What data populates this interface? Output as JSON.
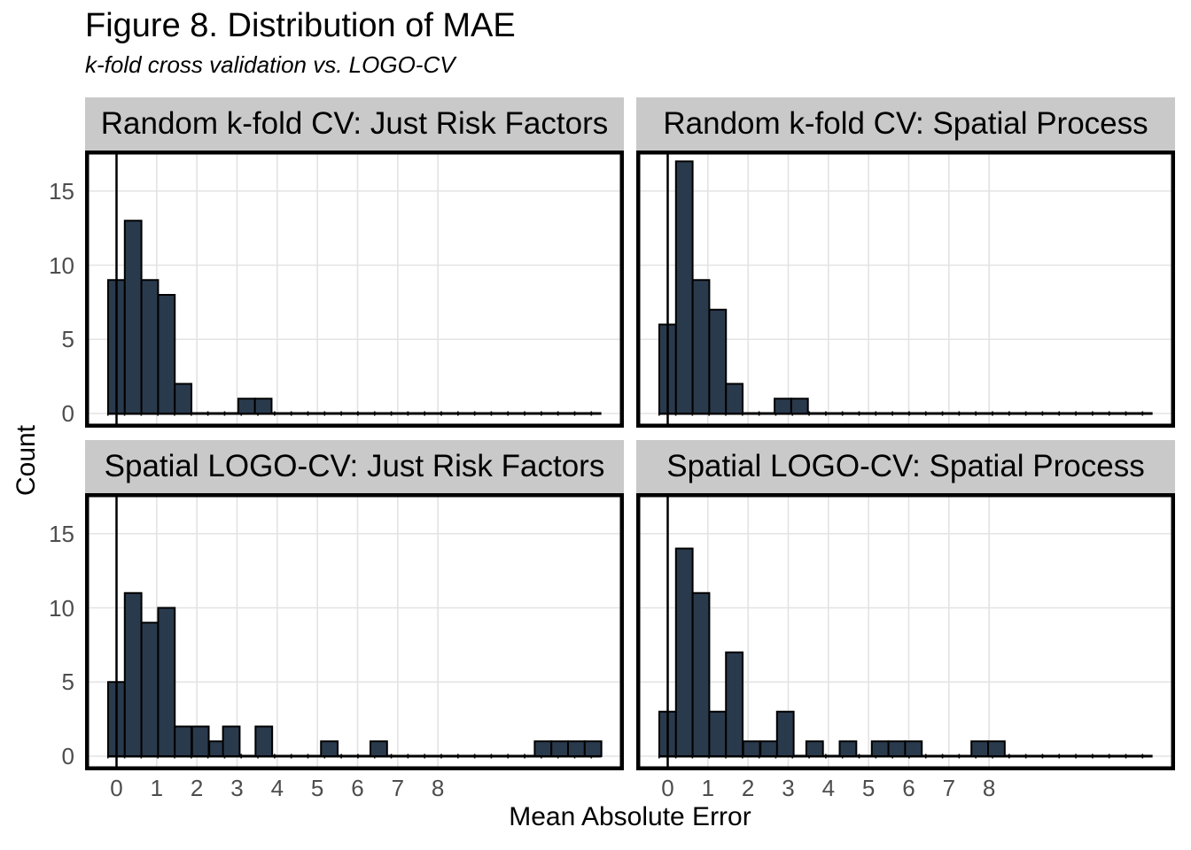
{
  "title": "Figure 8. Distribution of MAE",
  "subtitle": "k-fold cross validation vs. LOGO-CV",
  "axis_titles": {
    "x": "Mean Absolute Error",
    "y": "Count"
  },
  "axes": {
    "x_ticks": [
      0,
      1,
      2,
      3,
      4,
      5,
      6,
      7,
      8
    ],
    "y_ticks": [
      0,
      5,
      10,
      15
    ],
    "x_domain": [
      -0.78,
      12.63
    ],
    "y_domain": [
      -1.0,
      17.7
    ]
  },
  "colors": {
    "bar_fill": "#2a3a4d",
    "bar_stroke": "#000000",
    "strip_bg": "#c9c9c9",
    "strip_text": "#000000",
    "grid": "#e3e3e3",
    "axis_text": "#4d4d4d",
    "panel_border": "#000000",
    "zero_vline": "#000000",
    "baseline": "#000000",
    "background": "#ffffff"
  },
  "chart_data": {
    "type": "bar",
    "subtype": "faceted-histogram",
    "title": "Figure 8. Distribution of MAE",
    "subtitle": "k-fold cross validation vs. LOGO-CV",
    "xlabel": "Mean Absolute Error",
    "ylabel": "Count",
    "bin_width": 0.415,
    "baseline_extent": {
      "x_start": -0.215,
      "x_end": 12.07
    },
    "vline_x": 0,
    "grid": "on",
    "legend": "none",
    "panels": [
      {
        "facet": "Random k-fold CV: Just Risk Factors",
        "row": 0,
        "col": 0,
        "bars": [
          {
            "x": -0.21,
            "count": 9
          },
          {
            "x": 0.205,
            "count": 13
          },
          {
            "x": 0.62,
            "count": 9
          },
          {
            "x": 1.035,
            "count": 8
          },
          {
            "x": 1.45,
            "count": 2
          },
          {
            "x": 3.03,
            "count": 1
          },
          {
            "x": 3.445,
            "count": 1
          }
        ]
      },
      {
        "facet": "Random k-fold CV: Spatial Process",
        "row": 0,
        "col": 1,
        "bars": [
          {
            "x": -0.21,
            "count": 6
          },
          {
            "x": 0.205,
            "count": 17
          },
          {
            "x": 0.62,
            "count": 9
          },
          {
            "x": 1.035,
            "count": 7
          },
          {
            "x": 1.45,
            "count": 2
          },
          {
            "x": 2.66,
            "count": 1
          },
          {
            "x": 3.075,
            "count": 1
          }
        ]
      },
      {
        "facet": "Spatial LOGO-CV: Just Risk Factors",
        "row": 1,
        "col": 0,
        "bars": [
          {
            "x": -0.21,
            "count": 5
          },
          {
            "x": 0.205,
            "count": 11
          },
          {
            "x": 0.62,
            "count": 9
          },
          {
            "x": 1.035,
            "count": 10
          },
          {
            "x": 1.45,
            "count": 2
          },
          {
            "x": 1.88,
            "count": 2
          },
          {
            "x": 2.31,
            "count": 1
          },
          {
            "x": 2.65,
            "count": 2
          },
          {
            "x": 3.46,
            "count": 2
          },
          {
            "x": 5.09,
            "count": 1
          },
          {
            "x": 6.32,
            "count": 1
          },
          {
            "x": 10.41,
            "count": 1
          },
          {
            "x": 10.825,
            "count": 1
          },
          {
            "x": 11.24,
            "count": 1
          },
          {
            "x": 11.655,
            "count": 1
          }
        ]
      },
      {
        "facet": "Spatial LOGO-CV: Spatial Process",
        "row": 1,
        "col": 1,
        "bars": [
          {
            "x": -0.21,
            "count": 3
          },
          {
            "x": 0.205,
            "count": 14
          },
          {
            "x": 0.62,
            "count": 11
          },
          {
            "x": 1.035,
            "count": 3
          },
          {
            "x": 1.45,
            "count": 7
          },
          {
            "x": 1.88,
            "count": 1
          },
          {
            "x": 2.31,
            "count": 1
          },
          {
            "x": 2.72,
            "count": 3
          },
          {
            "x": 3.45,
            "count": 1
          },
          {
            "x": 4.28,
            "count": 1
          },
          {
            "x": 5.08,
            "count": 1
          },
          {
            "x": 5.495,
            "count": 1
          },
          {
            "x": 5.91,
            "count": 1
          },
          {
            "x": 7.56,
            "count": 1
          },
          {
            "x": 7.975,
            "count": 1
          }
        ]
      }
    ]
  }
}
